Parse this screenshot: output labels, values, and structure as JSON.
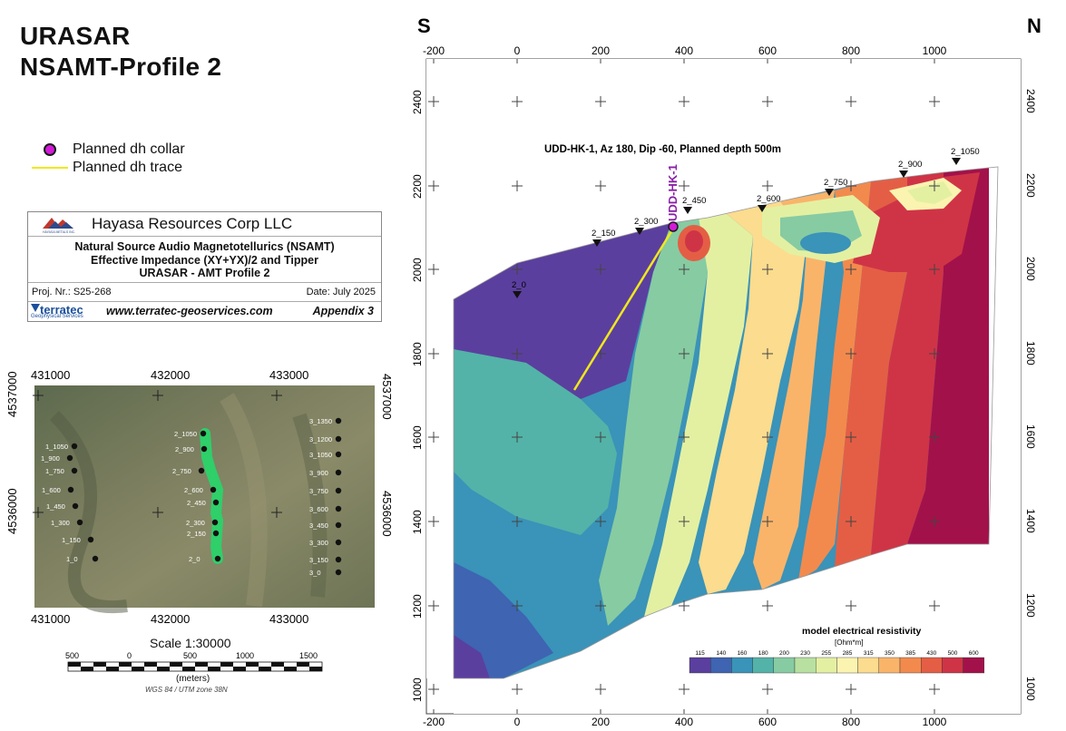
{
  "title": {
    "line1": "URASAR",
    "line2": "NSAMT-Profile 2"
  },
  "legend": [
    {
      "icon": "collar-dot-icon",
      "label": "Planned dh collar",
      "color": "#d21ad8"
    },
    {
      "icon": "trace-line-icon",
      "label": "Planned dh trace",
      "color": "#f0e81c"
    }
  ],
  "infobox": {
    "company": "Hayasa Resources Corp LLC",
    "logo_text": "HAYASA METALS INC.",
    "line1": "Natural Source Audio Magnetotellurics (NSAMT)",
    "line2": "Effective Impedance (XY+YX)/2 and Tipper",
    "line3": "URASAR - AMT Profile 2",
    "proj": "Proj. Nr.: S25-268",
    "date": "Date: July 2025",
    "terratec": "terratec",
    "terratec_sub": "Geophysical Services",
    "website": "www.terratec-geoservices.com",
    "appendix": "Appendix 3"
  },
  "location_map": {
    "x_ticks": [
      "431000",
      "432000",
      "433000"
    ],
    "y_ticks": [
      "4537000",
      "4536000"
    ],
    "line1_stations": [
      "1_1050",
      "1_900",
      "1_750",
      "1_600",
      "1_450",
      "1_300",
      "1_150",
      "1_0"
    ],
    "line2_stations": [
      "2_1050",
      "2_900",
      "2_750",
      "2_600",
      "2_450",
      "2_300",
      "2_150",
      "2_0"
    ],
    "line3_stations": [
      "3_1350",
      "3_1200",
      "3_1050",
      "3_900",
      "3_750",
      "3_600",
      "3_450",
      "3_300",
      "3_150",
      "3_0"
    ],
    "scale_title": "Scale 1:30000",
    "scale_ticks": [
      "500",
      "0",
      "500",
      "1000",
      "1500"
    ],
    "scale_units": "(meters)",
    "crs": "WGS 84 / UTM zone 38N"
  },
  "section": {
    "left_label": "S",
    "right_label": "N",
    "x_ticks": [
      "-200",
      "0",
      "200",
      "400",
      "600",
      "800",
      "1000"
    ],
    "y_ticks": [
      "2400",
      "2200",
      "2000",
      "1800",
      "1600",
      "1400",
      "1200",
      "1000"
    ],
    "hole_title": "UDD-HK-1, Az 180, Dip -60, Planned depth 500m",
    "hole_label": "UDD-HK-1",
    "stations": [
      "2_0",
      "2_150",
      "2_300",
      "2_450",
      "2_600",
      "2_750",
      "2_900",
      "2_1050"
    ],
    "colorbar_title": "model electrical resistivity",
    "colorbar_unit": "[Ohm*m]",
    "colorbar_values": [
      "115",
      "140",
      "160",
      "180",
      "200",
      "230",
      "255",
      "285",
      "315",
      "350",
      "385",
      "430",
      "500",
      "600"
    ],
    "colorbar_colors": [
      "#5b3f9e",
      "#3e64b2",
      "#3a93b8",
      "#53b3a8",
      "#87cba2",
      "#b8e0a0",
      "#e3f0a2",
      "#fbf4b0",
      "#fcdc8e",
      "#f9b46a",
      "#f28a4e",
      "#e45e45",
      "#cf3446",
      "#a3114a"
    ]
  }
}
